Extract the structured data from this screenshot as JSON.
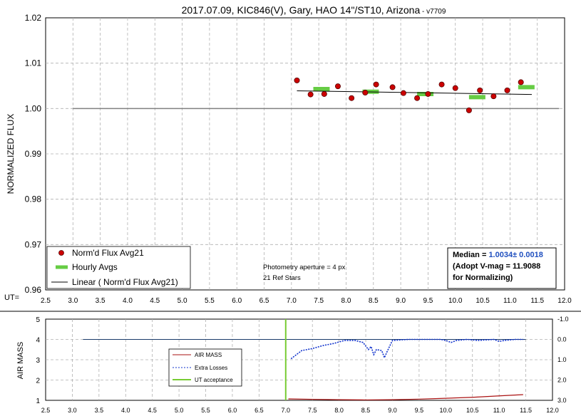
{
  "chart_data": [
    {
      "type": "scatter",
      "title": "2017.07.09, KIC846(V), Gary, HAO 14\"/ST10, Arizona",
      "title_suffix": " - v7709",
      "ylabel": "NORMALIZED FLUX",
      "x_axis_prefix": "UT=",
      "xlim": [
        2.5,
        12.0
      ],
      "ylim": [
        0.96,
        1.02
      ],
      "x_ticks": [
        "2.5",
        "3.0",
        "3.5",
        "4.0",
        "4.5",
        "5.0",
        "5.5",
        "6.0",
        "6.5",
        "7.0",
        "7.5",
        "8.0",
        "8.5",
        "9.0",
        "9.5",
        "10.0",
        "10.5",
        "11.0",
        "11.5",
        "12.0"
      ],
      "y_ticks": [
        "0.96",
        "0.97",
        "0.98",
        "0.99",
        "1.00",
        "1.01",
        "1.02"
      ],
      "grid": true,
      "reference_line": {
        "x": [
          3.0,
          11.9
        ],
        "y": 1.0
      },
      "series": [
        {
          "name": "Norm'd Flux Avg21",
          "style": "points",
          "color": "#cc0000",
          "x": [
            7.1,
            7.35,
            7.6,
            7.85,
            8.1,
            8.35,
            8.55,
            8.85,
            9.05,
            9.3,
            9.5,
            9.75,
            10.0,
            10.25,
            10.45,
            10.7,
            10.95,
            11.2
          ],
          "y": [
            1.0062,
            1.0031,
            1.0032,
            1.0049,
            1.0023,
            1.0035,
            1.0053,
            1.0047,
            1.0034,
            1.0023,
            1.0032,
            1.0053,
            1.0045,
            0.9996,
            1.004,
            1.0027,
            1.004,
            1.0058
          ]
        },
        {
          "name": "Hourly Avgs",
          "style": "segments",
          "color": "#66cc44",
          "segments": [
            {
              "x": [
                7.4,
                7.7
              ],
              "y": 1.0043
            },
            {
              "x": [
                8.3,
                8.6
              ],
              "y": 1.0037
            },
            {
              "x": [
                9.3,
                9.6
              ],
              "y": 1.0032
            },
            {
              "x": [
                10.25,
                10.55
              ],
              "y": 1.0025
            },
            {
              "x": [
                11.15,
                11.45
              ],
              "y": 1.0047
            }
          ]
        },
        {
          "name": "Linear ( Norm'd Flux Avg21)",
          "style": "line",
          "color": "#000000",
          "x": [
            7.1,
            11.4
          ],
          "y": [
            1.0039,
            1.0031
          ]
        }
      ],
      "annotations": [
        "Photometry aperture = 4 px",
        "21 Ref Stars"
      ],
      "median_box": {
        "label": "Median = ",
        "value": "1.0034± 0.0018",
        "line2": "(Adopt V-mag = 11.9088",
        "line3": " for Normalizing)"
      },
      "legend_placement": "bottom-left"
    },
    {
      "type": "line",
      "ylabel": "AIR MASS",
      "xlim": [
        2.5,
        12.0
      ],
      "ylim": [
        1,
        5
      ],
      "y2lim": [
        3.0,
        -1.0
      ],
      "x_ticks": [
        "2.5",
        "3.0",
        "3.5",
        "4.0",
        "4.5",
        "5.0",
        "5.5",
        "6.0",
        "6.5",
        "7.0",
        "7.5",
        "8.0",
        "8.5",
        "9.0",
        "9.5",
        "10.0",
        "10.5",
        "11.0",
        "11.5",
        "12.0"
      ],
      "y_ticks": [
        "1",
        "2",
        "3",
        "4",
        "5"
      ],
      "y2_ticks": [
        "3.0",
        "2.0",
        "1.0",
        "0.0",
        "-1.0"
      ],
      "grid": true,
      "reference_line": {
        "x": [
          3.2,
          11.5
        ],
        "y2": 0.0
      },
      "series": [
        {
          "name": "AIR MASS",
          "color": "#aa1111",
          "axis": "left",
          "x": [
            7.05,
            7.5,
            8.0,
            8.5,
            9.0,
            9.5,
            10.0,
            10.5,
            11.0,
            11.45
          ],
          "y": [
            1.07,
            1.05,
            1.03,
            1.02,
            1.03,
            1.06,
            1.1,
            1.15,
            1.22,
            1.28
          ]
        },
        {
          "name": "Extra Losses",
          "color": "#1133cc",
          "axis": "right",
          "x": [
            7.1,
            7.3,
            7.5,
            7.7,
            7.9,
            8.1,
            8.3,
            8.45,
            8.55,
            8.6,
            8.65,
            8.7,
            8.8,
            8.85,
            8.9,
            9.0,
            9.3,
            9.6,
            9.9,
            10.0,
            10.1,
            10.2,
            10.4,
            10.6,
            10.9,
            11.0,
            11.1,
            11.3,
            11.45
          ],
          "y": [
            0.95,
            0.55,
            0.45,
            0.3,
            0.2,
            0.05,
            0.05,
            0.15,
            0.5,
            0.35,
            0.75,
            0.5,
            0.55,
            0.9,
            0.6,
            0.05,
            0.0,
            0.0,
            0.0,
            0.05,
            0.15,
            0.05,
            0.0,
            0.05,
            0.0,
            0.1,
            0.05,
            0.0,
            0.0
          ]
        },
        {
          "name": "UT acceptance",
          "color": "#77cc33",
          "axis": "left",
          "x": [
            7.0,
            7.0
          ],
          "y": [
            1,
            5
          ]
        }
      ],
      "legend_placement": "center-left"
    }
  ]
}
